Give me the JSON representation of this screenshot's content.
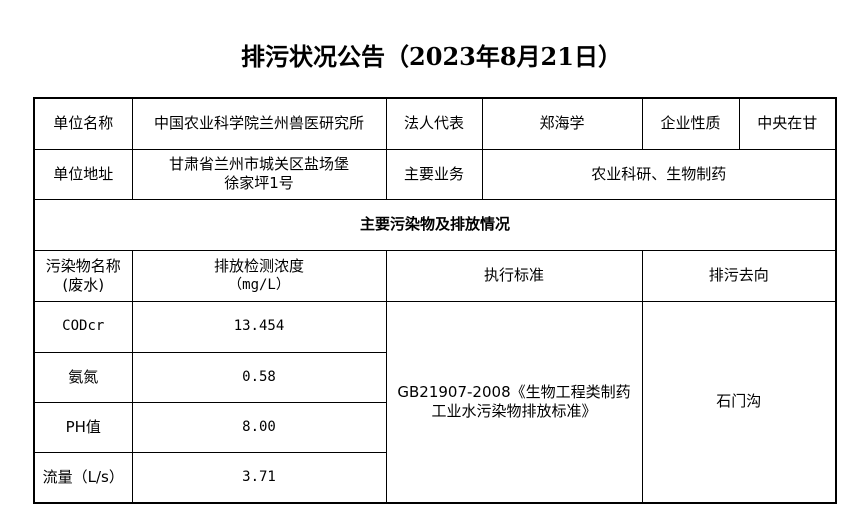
{
  "title": "排污状况公告（2023年8月21日）",
  "info": {
    "unit_name_label": "单位名称",
    "unit_name": "中国农业科学院兰州兽医研究所",
    "legal_rep_label": "法人代表",
    "legal_rep": "郑海学",
    "nature_label": "企业性质",
    "nature": "中央在甘",
    "address_label": "单位地址",
    "address_line1": "甘肃省兰州市城关区盐场堡",
    "address_line2": "徐家坪1号",
    "business_label": "主要业务",
    "business": "农业科研、生物制药"
  },
  "section_title": "主要污染物及排放情况",
  "headers": {
    "name_line1": "污染物名称",
    "name_line2": "(废水)",
    "conc_line1": "排放检测浓度",
    "conc_line2": "（mg/L）",
    "standard": "执行标准",
    "destination": "排污去向"
  },
  "rows": [
    {
      "name": "CODcr",
      "value": "13.454"
    },
    {
      "name": "氨氮",
      "value": "0.58"
    },
    {
      "name": "PH值",
      "value": "8.00"
    },
    {
      "name": "流量（L/s）",
      "value": "3.71"
    }
  ],
  "standard_line1": "GB21907-2008《生物工程类制药",
  "standard_line2": "工业水污染物排放标准》",
  "destination": "石门沟"
}
